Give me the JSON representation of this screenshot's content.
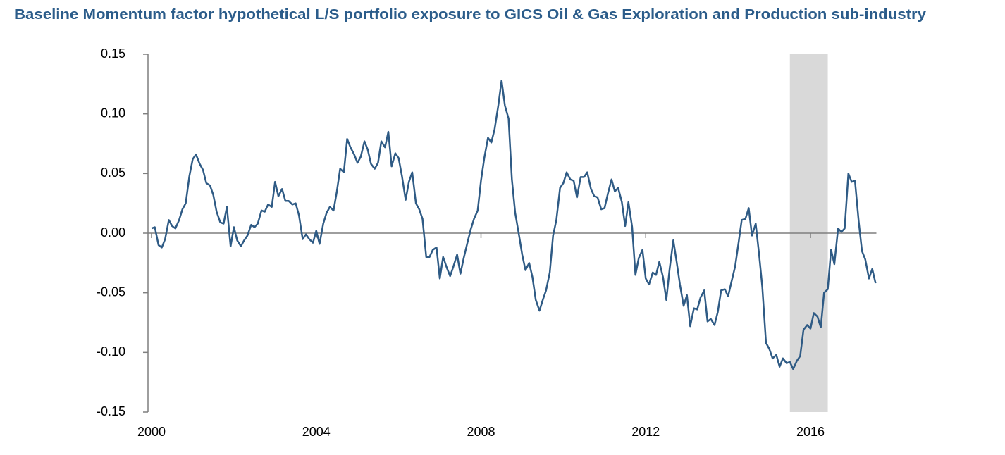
{
  "chart_data": {
    "type": "line",
    "title": "Baseline Momentum factor hypothetical L/S portfolio exposure to GICS Oil & Gas Exploration and Production sub-industry",
    "x": [
      2000,
      2000.08,
      2000.17,
      2000.25,
      2000.33,
      2000.42,
      2000.5,
      2000.58,
      2000.67,
      2000.75,
      2000.83,
      2000.92,
      2001,
      2001.08,
      2001.17,
      2001.25,
      2001.33,
      2001.42,
      2001.5,
      2001.58,
      2001.67,
      2001.75,
      2001.83,
      2001.92,
      2002,
      2002.08,
      2002.17,
      2002.25,
      2002.33,
      2002.42,
      2002.5,
      2002.58,
      2002.67,
      2002.75,
      2002.83,
      2002.92,
      2003,
      2003.08,
      2003.17,
      2003.25,
      2003.33,
      2003.42,
      2003.5,
      2003.58,
      2003.67,
      2003.75,
      2003.83,
      2003.92,
      2004,
      2004.08,
      2004.17,
      2004.25,
      2004.33,
      2004.42,
      2004.5,
      2004.58,
      2004.67,
      2004.75,
      2004.83,
      2004.92,
      2005,
      2005.08,
      2005.17,
      2005.25,
      2005.33,
      2005.42,
      2005.5,
      2005.58,
      2005.67,
      2005.75,
      2005.83,
      2005.92,
      2006,
      2006.08,
      2006.17,
      2006.25,
      2006.33,
      2006.42,
      2006.5,
      2006.58,
      2006.67,
      2006.75,
      2006.83,
      2006.92,
      2007,
      2007.08,
      2007.17,
      2007.25,
      2007.33,
      2007.42,
      2007.5,
      2007.58,
      2007.67,
      2007.75,
      2007.83,
      2007.92,
      2008,
      2008.08,
      2008.17,
      2008.25,
      2008.33,
      2008.42,
      2008.5,
      2008.58,
      2008.67,
      2008.75,
      2008.83,
      2008.92,
      2009,
      2009.08,
      2009.17,
      2009.25,
      2009.33,
      2009.42,
      2009.5,
      2009.58,
      2009.67,
      2009.75,
      2009.83,
      2009.92,
      2010,
      2010.08,
      2010.17,
      2010.25,
      2010.33,
      2010.42,
      2010.5,
      2010.58,
      2010.67,
      2010.75,
      2010.83,
      2010.92,
      2011,
      2011.08,
      2011.17,
      2011.25,
      2011.33,
      2011.42,
      2011.5,
      2011.58,
      2011.67,
      2011.75,
      2011.83,
      2011.92,
      2012,
      2012.08,
      2012.17,
      2012.25,
      2012.33,
      2012.42,
      2012.5,
      2012.58,
      2012.67,
      2012.75,
      2012.83,
      2012.92,
      2013,
      2013.08,
      2013.17,
      2013.25,
      2013.33,
      2013.42,
      2013.5,
      2013.58,
      2013.67,
      2013.75,
      2013.83,
      2013.92,
      2014,
      2014.08,
      2014.17,
      2014.25,
      2014.33,
      2014.42,
      2014.5,
      2014.58,
      2014.67,
      2014.75,
      2014.83,
      2014.92,
      2015,
      2015.08,
      2015.17,
      2015.25,
      2015.33,
      2015.42,
      2015.5,
      2015.58,
      2015.67,
      2015.75,
      2015.83,
      2015.92,
      2016,
      2016.08,
      2016.17,
      2016.25,
      2016.33,
      2016.42,
      2016.5,
      2016.58,
      2016.67,
      2016.75,
      2016.83,
      2016.92,
      2017,
      2017.08,
      2017.17,
      2017.25,
      2017.33,
      2017.42,
      2017.5,
      2017.58
    ],
    "series": [
      {
        "color": "#2f5b85",
        "values": [
          0.004,
          0.005,
          -0.01,
          -0.012,
          -0.005,
          0.011,
          0.006,
          0.004,
          0.011,
          0.02,
          0.025,
          0.048,
          0.062,
          0.066,
          0.058,
          0.053,
          0.042,
          0.04,
          0.032,
          0.018,
          0.009,
          0.008,
          0.022,
          -0.011,
          0.005,
          -0.006,
          -0.011,
          -0.006,
          -0.002,
          0.007,
          0.005,
          0.008,
          0.019,
          0.018,
          0.024,
          0.022,
          0.043,
          0.031,
          0.037,
          0.027,
          0.027,
          0.024,
          0.025,
          0.015,
          -0.005,
          -0.001,
          -0.005,
          -0.008,
          0.002,
          -0.009,
          0.008,
          0.017,
          0.022,
          0.019,
          0.035,
          0.054,
          0.051,
          0.079,
          0.072,
          0.066,
          0.059,
          0.064,
          0.077,
          0.07,
          0.058,
          0.054,
          0.059,
          0.077,
          0.072,
          0.085,
          0.056,
          0.067,
          0.063,
          0.048,
          0.028,
          0.043,
          0.051,
          0.025,
          0.02,
          0.012,
          -0.02,
          -0.02,
          -0.014,
          -0.012,
          -0.038,
          -0.02,
          -0.029,
          -0.036,
          -0.028,
          -0.018,
          -0.034,
          -0.021,
          -0.008,
          0.003,
          0.012,
          0.019,
          0.044,
          0.063,
          0.08,
          0.076,
          0.087,
          0.107,
          0.128,
          0.107,
          0.096,
          0.045,
          0.017,
          -0.001,
          -0.018,
          -0.031,
          -0.025,
          -0.037,
          -0.056,
          -0.065,
          -0.056,
          -0.048,
          -0.033,
          -0.002,
          0.011,
          0.038,
          0.042,
          0.051,
          0.045,
          0.044,
          0.03,
          0.047,
          0.047,
          0.051,
          0.037,
          0.031,
          0.03,
          0.02,
          0.021,
          0.033,
          0.045,
          0.035,
          0.038,
          0.026,
          0.006,
          0.026,
          0.005,
          -0.035,
          -0.021,
          -0.014,
          -0.038,
          -0.043,
          -0.033,
          -0.035,
          -0.024,
          -0.037,
          -0.056,
          -0.03,
          -0.006,
          -0.024,
          -0.043,
          -0.061,
          -0.052,
          -0.078,
          -0.063,
          -0.064,
          -0.054,
          -0.048,
          -0.074,
          -0.072,
          -0.077,
          -0.066,
          -0.048,
          -0.047,
          -0.053,
          -0.041,
          -0.028,
          -0.009,
          0.011,
          0.012,
          0.021,
          -0.002,
          0.008,
          -0.017,
          -0.045,
          -0.092,
          -0.097,
          -0.105,
          -0.102,
          -0.112,
          -0.105,
          -0.109,
          -0.108,
          -0.114,
          -0.107,
          -0.103,
          -0.081,
          -0.077,
          -0.08,
          -0.067,
          -0.07,
          -0.079,
          -0.05,
          -0.047,
          -0.014,
          -0.026,
          0.004,
          0.001,
          0.004,
          0.05,
          0.043,
          0.044,
          0.01,
          -0.015,
          -0.022,
          -0.038,
          -0.03,
          -0.042
        ]
      }
    ],
    "shaded_region": {
      "x": [
        2015.5,
        2016.42
      ],
      "color": "#d9d9d9"
    },
    "xlim": [
      2000,
      2017.6
    ],
    "xticks": [
      2000,
      2004,
      2008,
      2012,
      2016
    ],
    "ylim": [
      -0.15,
      0.15
    ],
    "yticks": [
      {
        "value": -0.15,
        "label": "-0.15"
      },
      {
        "value": -0.1,
        "label": "-0.10"
      },
      {
        "value": -0.05,
        "label": "-0.05"
      },
      {
        "value": 0,
        "label": "0.00"
      },
      {
        "value": 0.05,
        "label": "0.05"
      },
      {
        "value": 0.1,
        "label": "0.10"
      },
      {
        "value": 0.15,
        "label": "0.15"
      }
    ]
  }
}
